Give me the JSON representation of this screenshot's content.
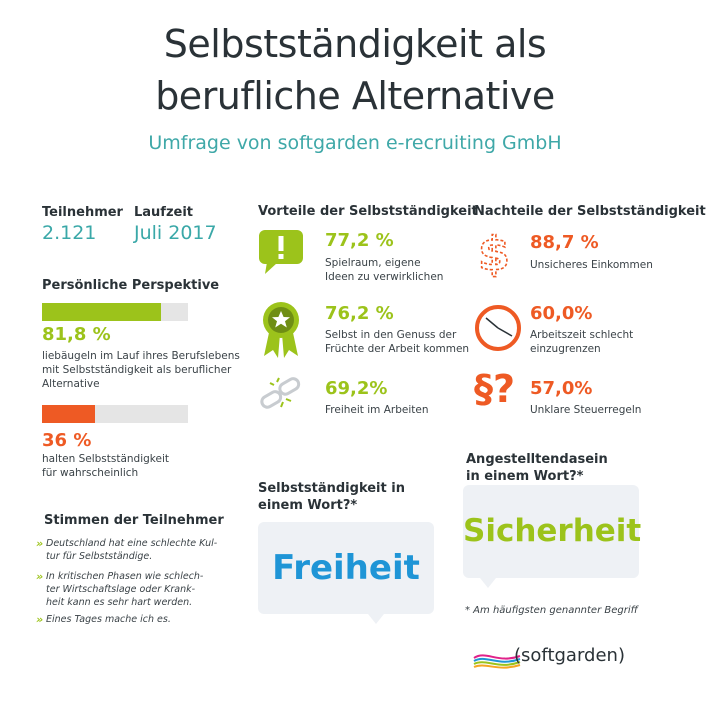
{
  "header": {
    "title_line1": "Selbstständigkeit als",
    "title_line2": "berufliche Alternative",
    "subtitle": "Umfrage von softgarden e-recruiting GmbH"
  },
  "stats": {
    "participants_label": "Teilnehmer",
    "participants_value": "2.121",
    "duration_label": "Laufzeit",
    "duration_value": "Juli 2017"
  },
  "perspective": {
    "heading": "Persönliche Perspektive",
    "item1_value": "81,8 %",
    "item1_fraction": 0.818,
    "item1_text_line1": "liebäugeln im Lauf ihres Berufslebens",
    "item1_text_line2": "mit Selbstständigkeit als beruflicher",
    "item1_text_line3": "Alternative",
    "item2_value": "36 %",
    "item2_fraction": 0.36,
    "item2_text_line1": "halten Selbstständigkeit",
    "item2_text_line2": "für wahrscheinlich"
  },
  "voices": {
    "heading": "Stimmen der Teilnehmer",
    "q1_line1": "Deutschland hat eine schlechte Kul-",
    "q1_line2": "tur für Selbstständige.",
    "q2_line1": "In kritischen Phasen wie schlech-",
    "q2_line2": "ter Wirtschaftslage oder Krank-",
    "q2_line3": "heit kann es sehr hart werden.",
    "q3_line1": "Eines Tages mache ich es."
  },
  "pros": {
    "heading": "Vorteile der Selbstständigkeit",
    "p1_value": "77,2 %",
    "p1_line1": "Spielraum, eigene",
    "p1_line2": "Ideen zu verwirklichen",
    "p2_value": "76,2 %",
    "p2_line1": "Selbst in den Genuss der",
    "p2_line2": "Früchte der Arbeit kommen",
    "p3_value": "69,2%",
    "p3_line1": "Freiheit im Arbeiten"
  },
  "cons": {
    "heading": "Nachteile der Selbstständigkeit",
    "c1_value": "88,7 %",
    "c1_line1": "Unsicheres Einkommen",
    "c2_value": "60,0%",
    "c2_line1": "Arbeitszeit schlecht",
    "c2_line2": "einzugrenzen",
    "c3_value": "57,0%",
    "c3_line1": "Unklare Steuerregeln",
    "c3_icon_text": "§?"
  },
  "word_self": {
    "heading_line1": "Selbstständigkeit in",
    "heading_line2": "einem Wort?*",
    "word": "Freiheit"
  },
  "word_employed": {
    "heading_line1": "Angestelltendasein",
    "heading_line2": "in einem Wort?*",
    "word": "Sicherheit"
  },
  "footnote": "* Am häufigsten genannter Begriff",
  "logo": {
    "text": "softgarden",
    "open": "(",
    "close": ")"
  },
  "colors": {
    "teal": "#3aa8a8",
    "green": "#9cc31b",
    "orange": "#ee5a24",
    "dark": "#2a3237",
    "bar_bg": "#e5e5e5",
    "bubble": "#eef1f5"
  }
}
